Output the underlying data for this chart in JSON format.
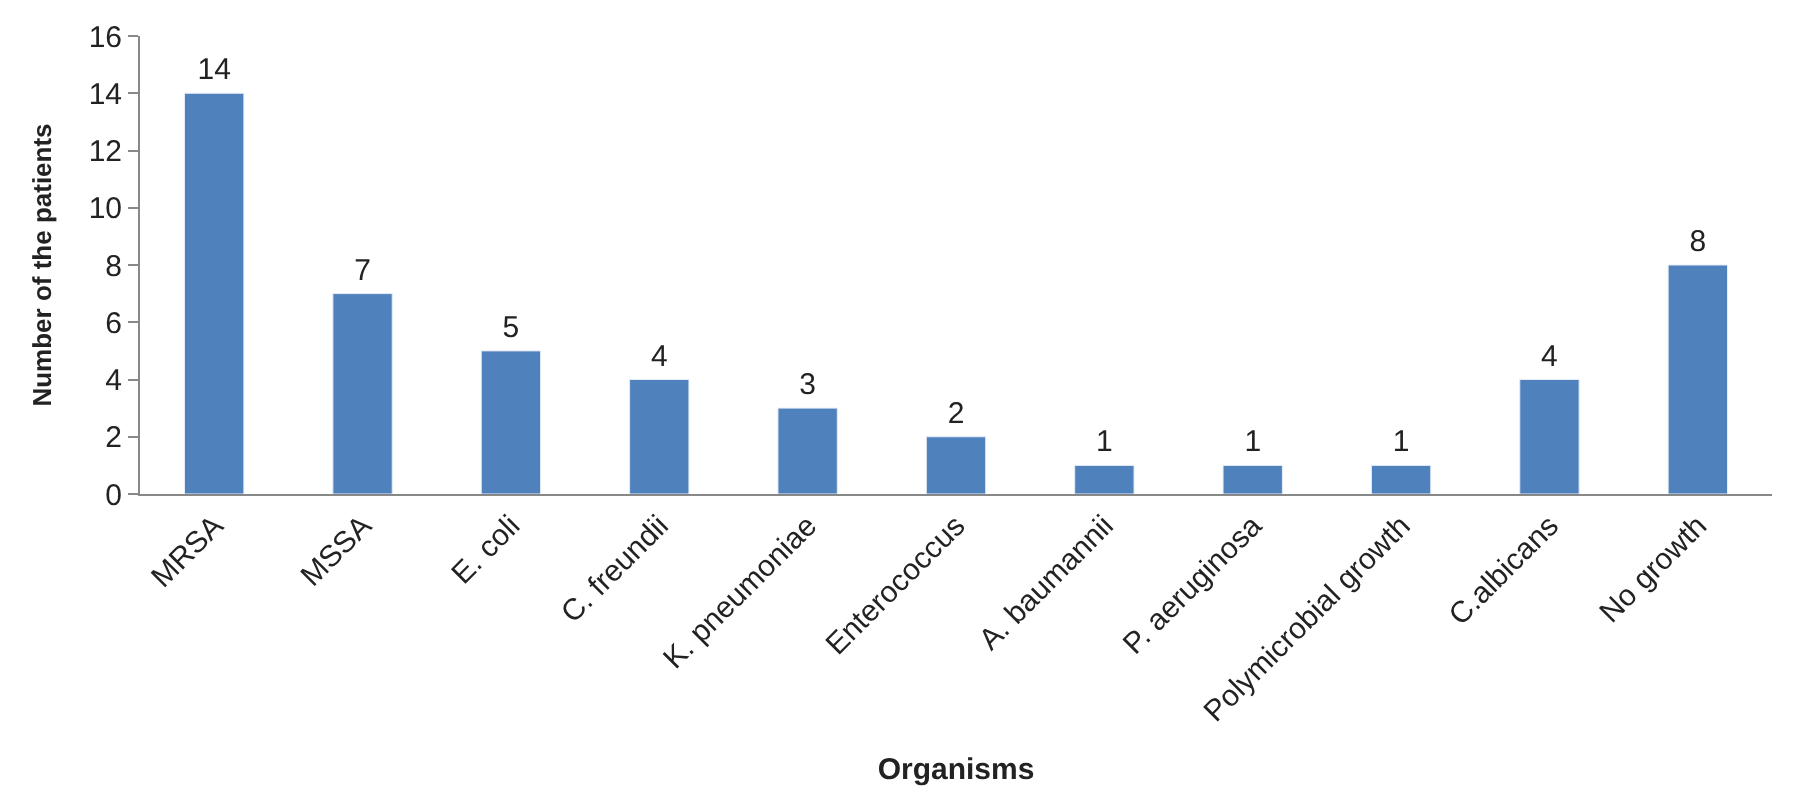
{
  "chart_data": {
    "type": "bar",
    "categories": [
      "MRSA",
      "MSSA",
      "E. coli",
      "C. freundii",
      "K. pneumoniae",
      "Enterococcus",
      "A. baumannii",
      "P. aeruginosa",
      "Polymicrobial growth",
      "C.albicans",
      "No growth"
    ],
    "values": [
      14,
      7,
      5,
      4,
      3,
      2,
      1,
      1,
      1,
      4,
      8
    ],
    "color": "#4f81bd",
    "xlabel": "Organisms",
    "ylabel": "Number of the patients",
    "ylim": [
      0,
      16
    ],
    "yticks": [
      0,
      2,
      4,
      6,
      8,
      10,
      12,
      14,
      16
    ],
    "data_labels": true,
    "grid": false
  }
}
